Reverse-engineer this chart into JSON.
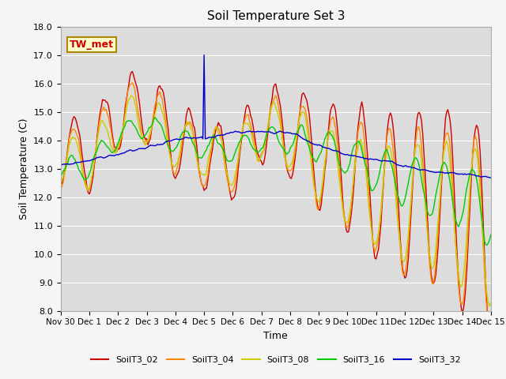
{
  "title": "Soil Temperature Set 3",
  "ylabel": "Soil Temperature (C)",
  "xlabel": "Time",
  "plot_bg": "#dcdcdc",
  "fig_bg": "#f5f5f5",
  "ylim": [
    8.0,
    18.0
  ],
  "yticks": [
    8.0,
    9.0,
    10.0,
    11.0,
    12.0,
    13.0,
    14.0,
    15.0,
    16.0,
    17.0,
    18.0
  ],
  "series_colors": {
    "SoilT3_02": "#cc0000",
    "SoilT3_04": "#ff8800",
    "SoilT3_08": "#cccc00",
    "SoilT3_16": "#00cc00",
    "SoilT3_32": "#0000cc"
  },
  "annotation_label": "TW_met",
  "annotation_text_color": "#cc0000",
  "annotation_box_facecolor": "#ffffcc",
  "annotation_box_edgecolor": "#aa8800",
  "title_fontsize": 11,
  "axis_fontsize": 9,
  "tick_fontsize": 8,
  "legend_fontsize": 8,
  "linewidth": 1.0
}
